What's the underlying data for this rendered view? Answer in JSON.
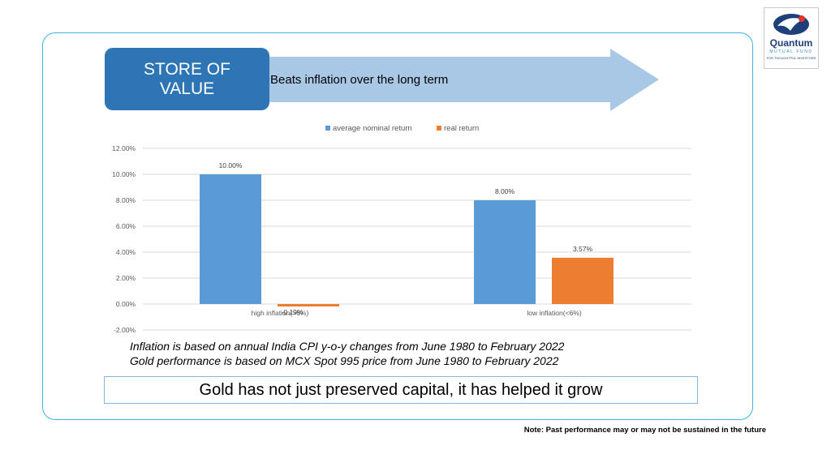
{
  "logo": {
    "name": "Quantum",
    "sub": "MUTUAL FUND",
    "tagline": "FOR THOUGHTFUL INVESTORS"
  },
  "header": {
    "box_label": "STORE OF VALUE",
    "arrow_label": "Beats inflation over the long term"
  },
  "chart_data": {
    "type": "bar",
    "categories": [
      "high inflation(>6%)",
      "low inflation(<6%)"
    ],
    "series": [
      {
        "name": "average nominal return",
        "values": [
          10.0,
          8.0
        ],
        "labels": [
          "10.00%",
          "8.00%"
        ],
        "color": "#5b9bd5"
      },
      {
        "name": "real return",
        "values": [
          -0.19,
          3.57
        ],
        "labels": [
          "-0.19%",
          "3.57%"
        ],
        "color": "#ed7d31"
      }
    ],
    "ylim": [
      -2,
      12
    ],
    "yticks": [
      "-2.00%",
      "0.00%",
      "2.00%",
      "4.00%",
      "6.00%",
      "8.00%",
      "10.00%",
      "12.00%"
    ],
    "grid": true,
    "legend": "top-center",
    "xlabel": "",
    "ylabel": "",
    "title": ""
  },
  "notes": {
    "line1": "Inflation is based on annual India CPI y-o-y changes from June 1980 to February 2022",
    "line2": "Gold performance is based on MCX Spot 995 price from June 1980 to February 2022"
  },
  "conclusion": "Gold has not just preserved capital, it has helped it grow",
  "disclaimer": "Note: Past performance may or may not be sustained in the future"
}
